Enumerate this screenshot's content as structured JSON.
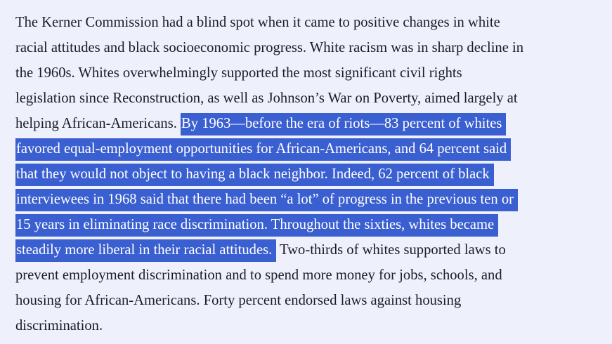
{
  "paragraph": {
    "lines": [
      {
        "plain_before": "The Kerner Commission had a blind spot when it came to positive changes in white",
        "highlight": "",
        "plain_after": ""
      },
      {
        "plain_before": "racial attitudes and black socioeconomic progress. White racism was in sharp decline in",
        "highlight": "",
        "plain_after": ""
      },
      {
        "plain_before": "the 1960s. Whites overwhelmingly supported the most significant civil rights",
        "highlight": "",
        "plain_after": ""
      },
      {
        "plain_before": "legislation since Reconstruction, as well as Johnson’s War on Poverty, aimed largely at",
        "highlight": "",
        "plain_after": ""
      },
      {
        "plain_before": "helping African-Americans. ",
        "highlight": "By 1963—before the era of riots—83 percent of whites",
        "plain_after": ""
      },
      {
        "plain_before": "",
        "highlight": "favored equal-employment opportunities for African-Americans, and 64 percent said",
        "plain_after": ""
      },
      {
        "plain_before": "",
        "highlight": "that they would not object to having a black neighbor. Indeed, 62 percent of black",
        "plain_after": ""
      },
      {
        "plain_before": "",
        "highlight": "interviewees in 1968 said that there had been “a lot” of progress in the previous ten or",
        "plain_after": ""
      },
      {
        "plain_before": "",
        "highlight": "15 years in eliminating race discrimination. Throughout the sixties, whites became",
        "plain_after": ""
      },
      {
        "plain_before": "",
        "highlight": "steadily more liberal in their racial attitudes.",
        "plain_after": " Two-thirds of whites supported laws to"
      },
      {
        "plain_before": "prevent employment discrimination and to spend more money for jobs, schools, and",
        "highlight": "",
        "plain_after": ""
      },
      {
        "plain_before": "housing for African-Americans. Forty percent endorsed laws against housing",
        "highlight": "",
        "plain_after": ""
      },
      {
        "plain_before": "discrimination.",
        "highlight": "",
        "plain_after": ""
      }
    ]
  },
  "colors": {
    "background": "#eef0fb",
    "text": "#1c1c28",
    "selection": "#3a5fd0",
    "selection_text": "#ffffff"
  }
}
